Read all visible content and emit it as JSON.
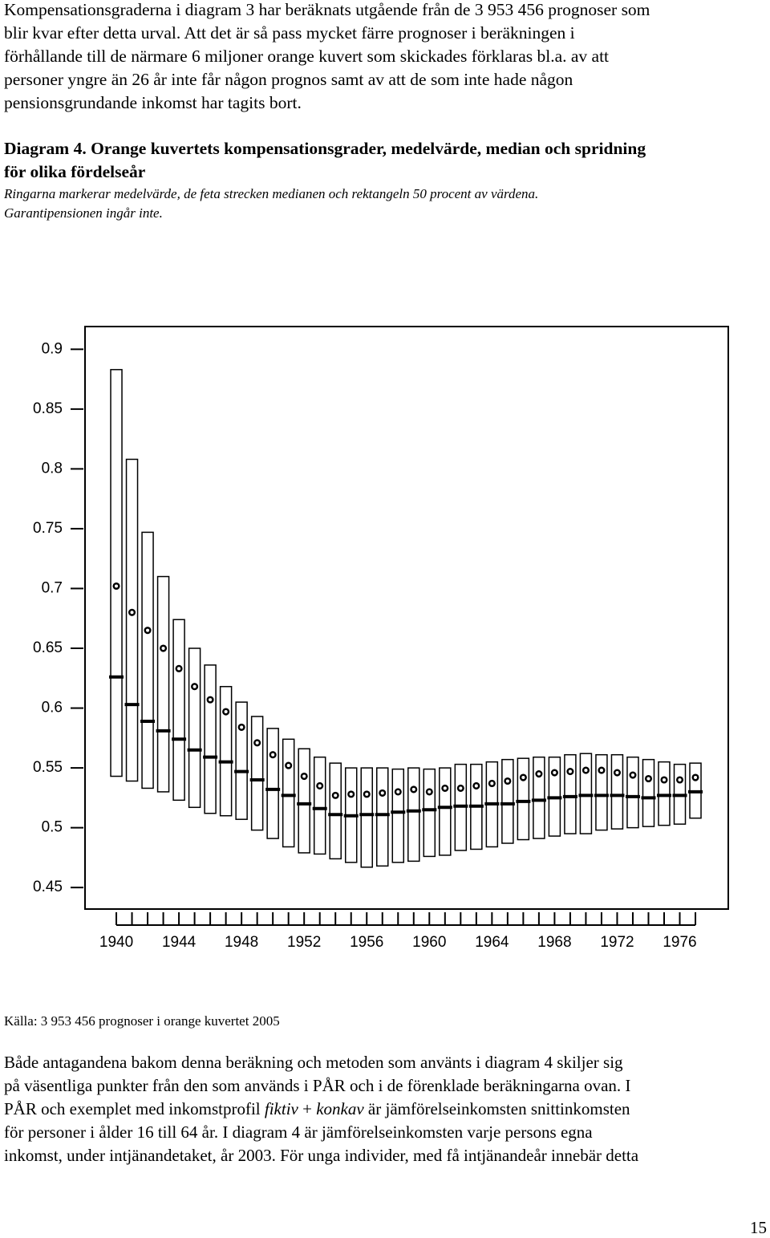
{
  "document": {
    "intro_lines": [
      "Kompensationsgraderna i diagram 3 har beräknats utgående från de 3 953 456 prognoser som",
      "blir kvar efter detta urval. Att det är så pass mycket färre prognoser i beräkningen i",
      "förhållande till de närmare 6 miljoner orange kuvert som skickades förklaras bl.a. av att",
      "personer yngre än 26 år inte får någon prognos samt av att de som inte hade någon",
      "pensionsgrundande inkomst har tagits bort."
    ],
    "caption_title_lines": [
      "Diagram 4. Orange kuvertets kompensationsgrader, medelvärde, median och spridning",
      "för olika fördelseår"
    ],
    "caption_note_lines": [
      "Ringarna markerar medelvärde, de feta strecken medianen och rektangeln 50 procent av värdena.",
      "Garantipensionen ingår inte."
    ],
    "source": "Källa: 3 953 456 prognoser i orange kuvertet 2005",
    "body_lines": [
      "Både antagandena bakom denna beräkning och metoden som använts i diagram 4 skiljer sig",
      "på väsentliga punkter från den som används i PÅR och i de förenklade beräkningarna ovan. I",
      [
        "PÅR och exemplet med inkomstprofil ",
        "fiktiv",
        " + ",
        "konkav",
        " är jämförelseinkomsten snittinkomsten"
      ],
      "för personer i ålder 16 till 64 år. I diagram 4 är jämförelseinkomsten varje persons egna",
      "inkomst, under intjänandetaket, år 2003. För unga individer, med få intjänandeår innebär detta"
    ],
    "page_number": "15"
  },
  "chart_data": {
    "type": "box",
    "x": [
      1940,
      1941,
      1942,
      1943,
      1944,
      1945,
      1946,
      1947,
      1948,
      1949,
      1950,
      1951,
      1952,
      1953,
      1954,
      1955,
      1956,
      1957,
      1958,
      1959,
      1960,
      1961,
      1962,
      1963,
      1964,
      1965,
      1966,
      1967,
      1968,
      1969,
      1970,
      1971,
      1972,
      1973,
      1974,
      1975,
      1976,
      1977
    ],
    "q1": [
      0.543,
      0.539,
      0.533,
      0.53,
      0.523,
      0.517,
      0.512,
      0.51,
      0.507,
      0.498,
      0.491,
      0.484,
      0.479,
      0.478,
      0.474,
      0.471,
      0.467,
      0.468,
      0.471,
      0.472,
      0.476,
      0.477,
      0.481,
      0.482,
      0.484,
      0.487,
      0.49,
      0.491,
      0.493,
      0.495,
      0.495,
      0.498,
      0.499,
      0.5,
      0.501,
      0.502,
      0.503,
      0.508
    ],
    "median": [
      0.626,
      0.603,
      0.589,
      0.581,
      0.574,
      0.565,
      0.559,
      0.555,
      0.547,
      0.54,
      0.532,
      0.527,
      0.52,
      0.516,
      0.511,
      0.51,
      0.511,
      0.511,
      0.513,
      0.514,
      0.515,
      0.517,
      0.518,
      0.518,
      0.52,
      0.52,
      0.522,
      0.523,
      0.525,
      0.526,
      0.527,
      0.527,
      0.527,
      0.526,
      0.525,
      0.527,
      0.527,
      0.53
    ],
    "q3": [
      0.883,
      0.808,
      0.747,
      0.71,
      0.674,
      0.65,
      0.636,
      0.618,
      0.605,
      0.593,
      0.583,
      0.574,
      0.566,
      0.559,
      0.554,
      0.55,
      0.55,
      0.55,
      0.549,
      0.55,
      0.549,
      0.55,
      0.553,
      0.553,
      0.555,
      0.557,
      0.558,
      0.559,
      0.559,
      0.561,
      0.562,
      0.561,
      0.561,
      0.559,
      0.557,
      0.555,
      0.553,
      0.554
    ],
    "mean": [
      0.702,
      0.68,
      0.665,
      0.65,
      0.633,
      0.618,
      0.607,
      0.597,
      0.584,
      0.571,
      0.561,
      0.552,
      0.543,
      0.535,
      0.527,
      0.528,
      0.528,
      0.529,
      0.53,
      0.532,
      0.53,
      0.533,
      0.533,
      0.535,
      0.537,
      0.539,
      0.542,
      0.545,
      0.546,
      0.547,
      0.548,
      0.548,
      0.546,
      0.544,
      0.541,
      0.54,
      0.54,
      0.542
    ],
    "xlim": [
      1938,
      1979.1
    ],
    "ylim": [
      0.432,
      0.919
    ],
    "xticks": [
      1940,
      1944,
      1948,
      1952,
      1956,
      1960,
      1964,
      1968,
      1972,
      1976
    ],
    "yticks": [
      0.9,
      0.85,
      0.8,
      0.75,
      0.7,
      0.65,
      0.6,
      0.55,
      0.5,
      0.45
    ],
    "grid": false,
    "color": "#000000"
  }
}
